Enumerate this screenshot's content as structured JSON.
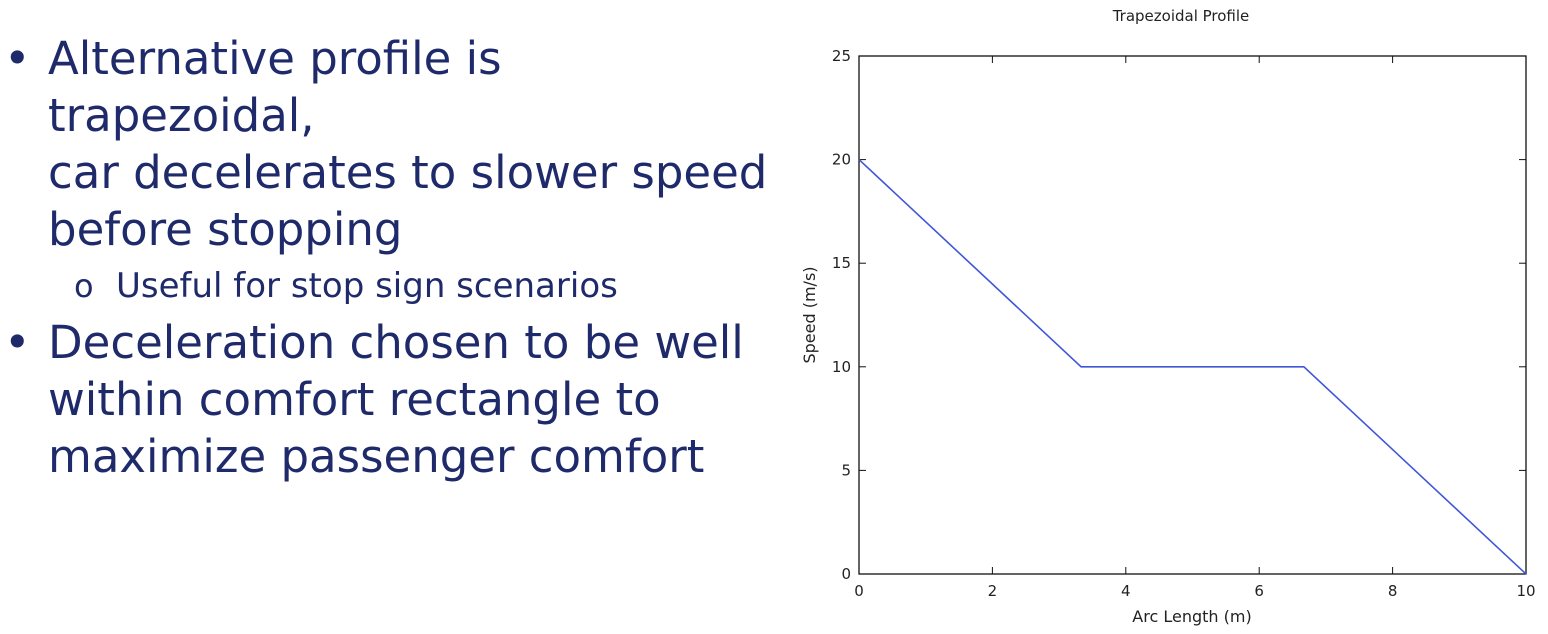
{
  "slide": {
    "bullets": [
      {
        "text_lines": [
          "Alternative profile is trapezoidal,",
          "car decelerates to slower speed",
          "before stopping"
        ],
        "sub_bullets": [
          "Useful for stop sign scenarios"
        ]
      },
      {
        "text_lines": [
          "Deceleration chosen to be well",
          "within comfort rectangle to",
          "maximize passenger comfort"
        ],
        "sub_bullets": []
      }
    ],
    "bullet_glyph": "•",
    "sub_bullet_glyph": "o",
    "text_color": "#1f2a6b"
  },
  "chart_data": {
    "type": "line",
    "title": "Trapezoidal Profile",
    "xlabel": "Arc Length (m)",
    "ylabel": "Speed (m/s)",
    "xlim": [
      0,
      10
    ],
    "ylim": [
      0,
      25
    ],
    "xticks": [
      0,
      2,
      4,
      6,
      8,
      10
    ],
    "yticks": [
      0,
      5,
      10,
      15,
      20,
      25
    ],
    "grid": false,
    "series": [
      {
        "x": [
          0,
          3.33,
          6.67,
          10
        ],
        "y": [
          20,
          10,
          10,
          0
        ],
        "color": "#3f56d8"
      }
    ]
  }
}
